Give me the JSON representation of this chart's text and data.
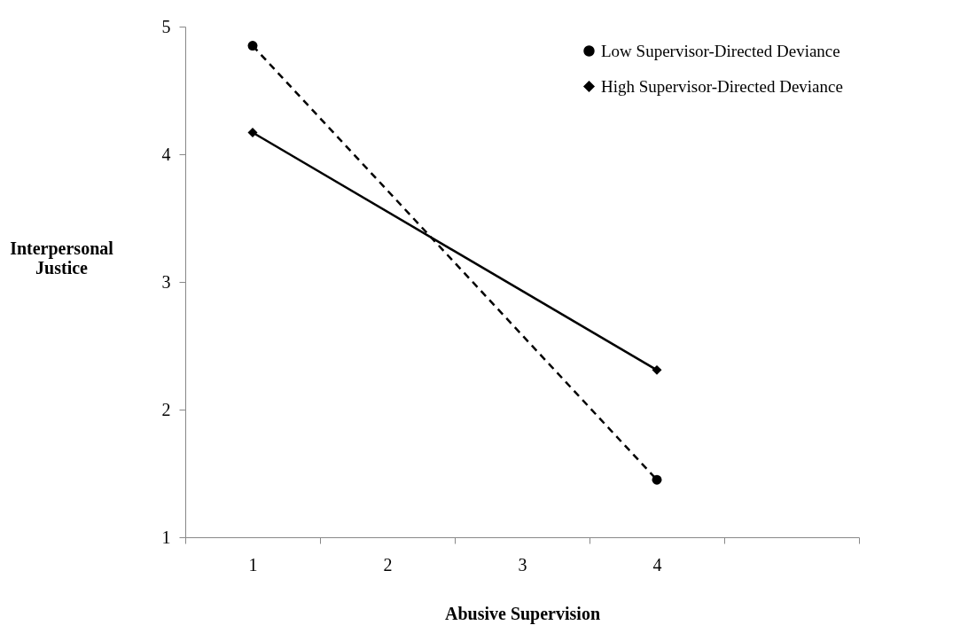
{
  "chart_data": {
    "type": "line",
    "xlabel": "Abusive Supervision",
    "ylabel": "Interpersonal\nJustice",
    "categories": [
      "1",
      "2",
      "3",
      "4",
      null
    ],
    "ylim": [
      1,
      5
    ],
    "yticks": [
      1,
      2,
      3,
      4,
      5
    ],
    "grid": false,
    "legend": "top right",
    "series": [
      {
        "name": "Low Supervisor-Directed Deviance",
        "color": "#000000",
        "values": [
          4.85,
          null,
          null,
          1.45,
          null
        ],
        "marker": "circle",
        "line_style": "dashed"
      },
      {
        "name": "High Supervisor-Directed Deviance",
        "color": "#000000",
        "values": [
          4.17,
          null,
          null,
          2.31,
          null
        ],
        "marker": "diamond",
        "line_style": "solid"
      }
    ]
  }
}
